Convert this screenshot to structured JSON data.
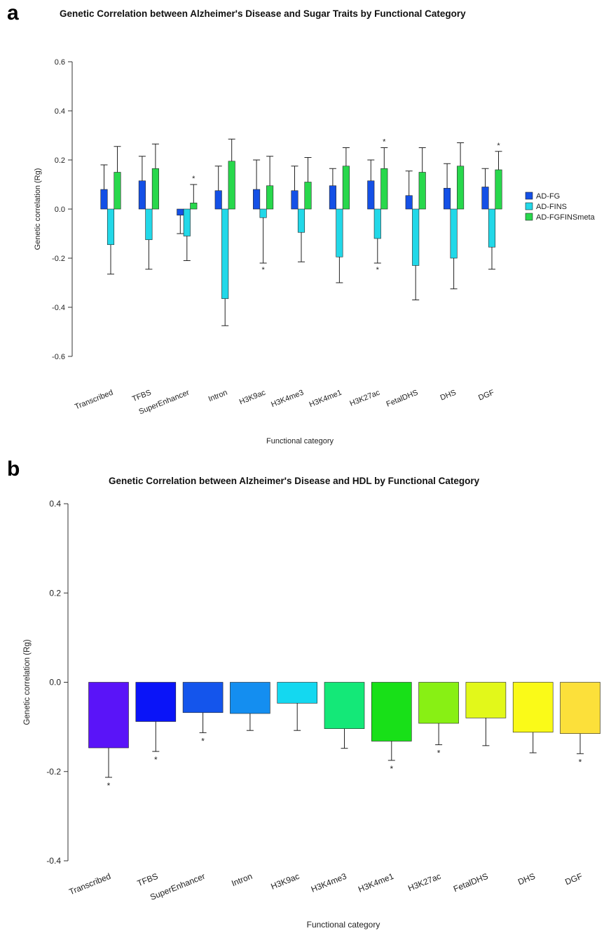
{
  "panels": [
    {
      "letter": "a"
    },
    {
      "letter": "b"
    }
  ],
  "chart_data": [
    {
      "type": "bar",
      "title": "Genetic Correlation between Alzheimer's Disease and Sugar Traits by Functional Category",
      "xlabel": "Functional category",
      "ylabel": "Genetic correlation (Rg)",
      "ylim": [
        -0.6,
        0.6
      ],
      "yticks": [
        "-0.6",
        "-0.4",
        "-0.2",
        "0.0",
        "0.2",
        "0.4",
        "0.6"
      ],
      "categories": [
        "Transcribed",
        "TFBS",
        "SuperEnhancer",
        "Intron",
        "H3K9ac",
        "H3K4me3",
        "H3K4me1",
        "H3K27ac",
        "FetalDHS",
        "DHS",
        "DGF"
      ],
      "legend_position": "right",
      "grid": false,
      "series": [
        {
          "name": "AD-FG",
          "color": "#1450e6",
          "values": [
            0.08,
            0.115,
            -0.025,
            0.075,
            0.08,
            0.075,
            0.095,
            0.115,
            0.055,
            0.085,
            0.09
          ],
          "error_ends": [
            0.18,
            0.215,
            -0.1,
            0.175,
            0.2,
            0.175,
            0.165,
            0.2,
            0.155,
            0.185,
            0.165
          ],
          "significant": [
            false,
            false,
            false,
            false,
            false,
            false,
            false,
            false,
            false,
            false,
            false
          ]
        },
        {
          "name": "AD-FINS",
          "color": "#22d8e8",
          "values": [
            -0.145,
            -0.125,
            -0.11,
            -0.365,
            -0.035,
            -0.095,
            -0.195,
            -0.12,
            -0.23,
            -0.2,
            -0.155
          ],
          "error_ends": [
            -0.265,
            -0.245,
            -0.21,
            -0.475,
            -0.22,
            -0.215,
            -0.3,
            -0.22,
            -0.37,
            -0.325,
            -0.245
          ],
          "significant": [
            false,
            false,
            false,
            false,
            true,
            false,
            false,
            true,
            false,
            false,
            false
          ]
        },
        {
          "name": "AD-FGFINSmeta",
          "color": "#28d84c",
          "values": [
            0.15,
            0.165,
            0.025,
            0.195,
            0.095,
            0.11,
            0.175,
            0.165,
            0.15,
            0.175,
            0.16
          ],
          "error_ends": [
            0.255,
            0.265,
            0.1,
            0.285,
            0.215,
            0.21,
            0.25,
            0.25,
            0.25,
            0.27,
            0.235
          ],
          "significant": [
            false,
            false,
            true,
            false,
            false,
            false,
            false,
            true,
            false,
            false,
            true
          ]
        }
      ],
      "significance_marker": "*"
    },
    {
      "type": "bar",
      "title": "Genetic Correlation between Alzheimer's Disease and HDL by Functional Category",
      "xlabel": "Functional category",
      "ylabel": "Genetic correlation (Rg)",
      "ylim": [
        -0.4,
        0.4
      ],
      "yticks": [
        "-0.4",
        "-0.2",
        "0.0",
        "0.2",
        "0.4"
      ],
      "categories": [
        "Transcribed",
        "TFBS",
        "SuperEnhancer",
        "Intron",
        "H3K9ac",
        "H3K4me3",
        "H3K4me1",
        "H3K27ac",
        "FetalDHS",
        "DHS",
        "DGF"
      ],
      "grid": false,
      "series": [
        {
          "values": [
            -0.147,
            -0.088,
            -0.068,
            -0.07,
            -0.047,
            -0.104,
            -0.132,
            -0.092,
            -0.08,
            -0.112,
            -0.115
          ],
          "error_ends": [
            -0.213,
            -0.155,
            -0.113,
            -0.108,
            -0.108,
            -0.148,
            -0.175,
            -0.14,
            -0.142,
            -0.158,
            -0.16
          ],
          "significant": [
            true,
            true,
            true,
            false,
            false,
            false,
            true,
            true,
            false,
            false,
            true
          ],
          "colors": [
            "#5a14f8",
            "#0a14f8",
            "#1455ec",
            "#148ef0",
            "#14d8f0",
            "#14e878",
            "#18e018",
            "#88f014",
            "#e2f81a",
            "#fafa18",
            "#fce03a"
          ]
        }
      ],
      "significance_marker": "*"
    }
  ]
}
